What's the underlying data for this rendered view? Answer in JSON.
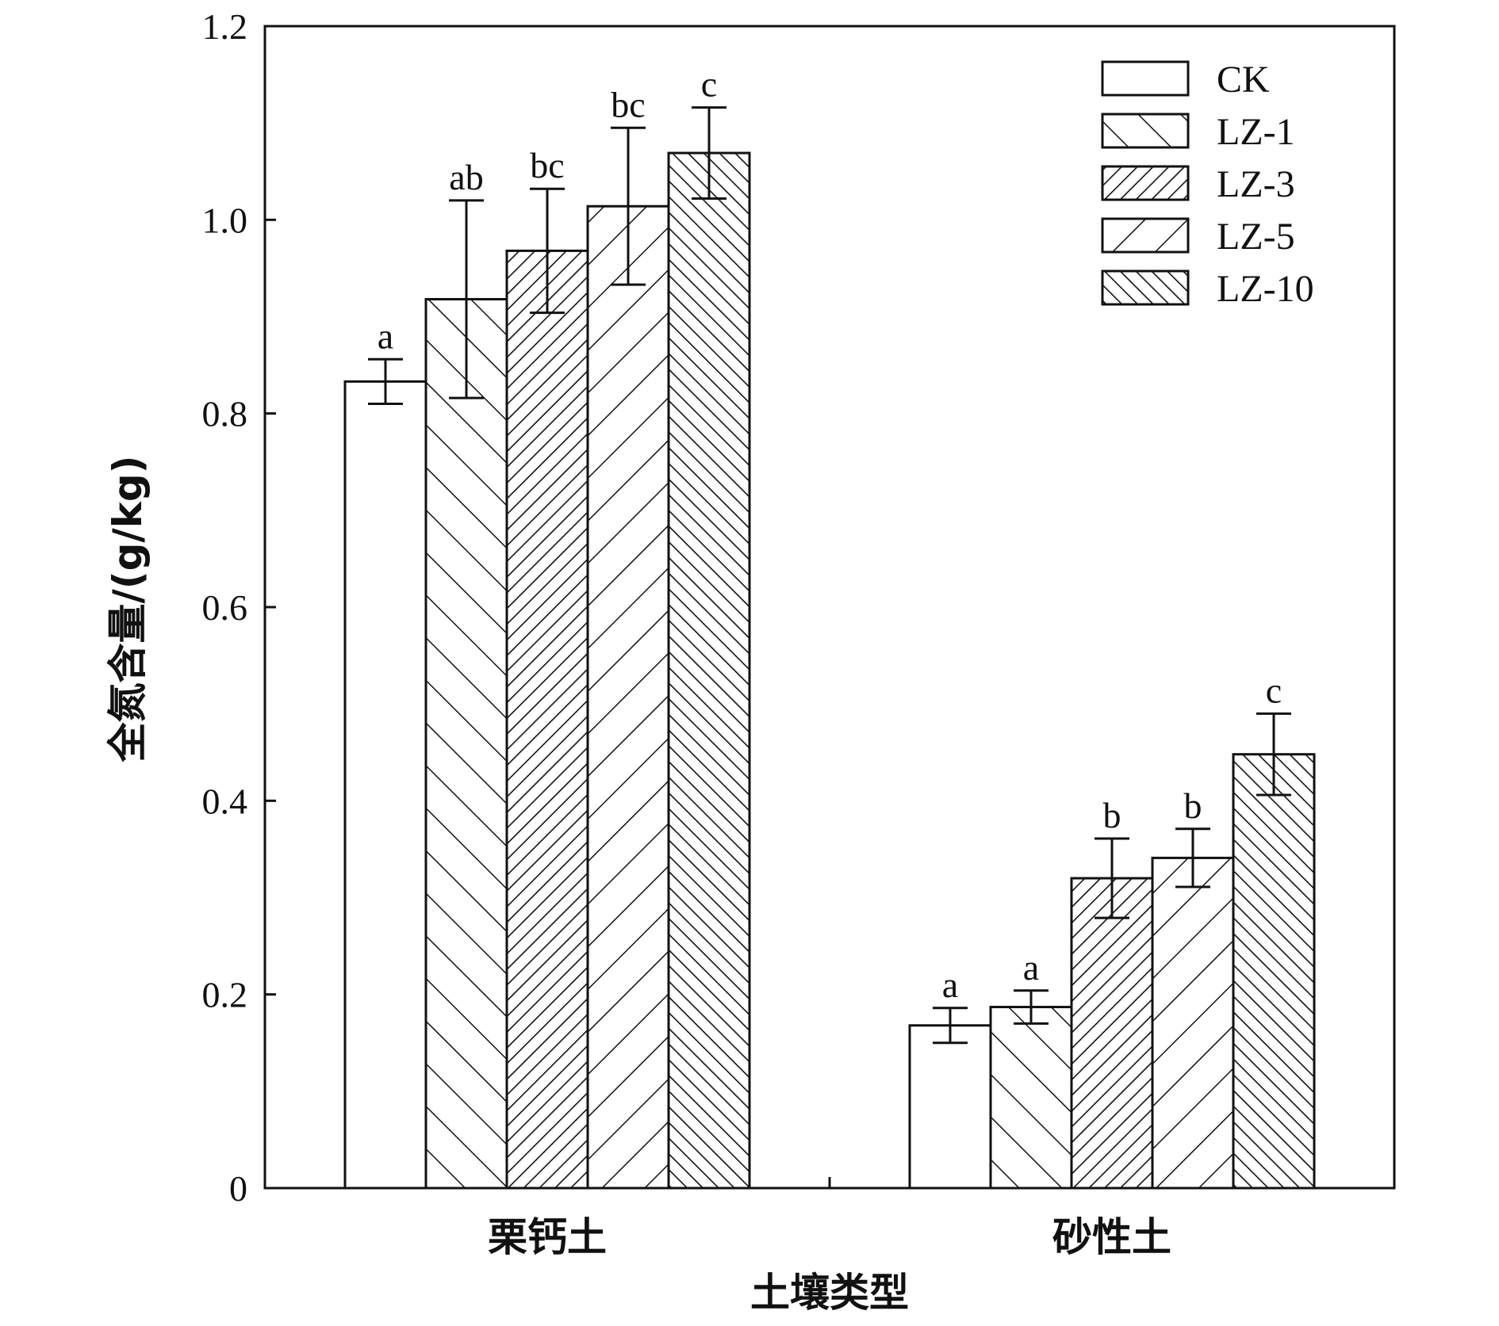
{
  "chart_data": {
    "type": "bar",
    "xlabel": "土壤类型",
    "ylabel": "全氮含量/(g/kg)",
    "ylim": [
      0,
      1.2
    ],
    "yticks": [
      "0",
      "0.2",
      "0.4",
      "0.6",
      "0.8",
      "1.0",
      "1.2"
    ],
    "categories": [
      "栗钙土",
      "砂性土"
    ],
    "legend_position": "top-right",
    "series": [
      {
        "name": "CK",
        "pattern": "none",
        "values": [
          0.833,
          0.168
        ],
        "errors": [
          0.023,
          0.018
        ],
        "labels": [
          "a",
          "a"
        ]
      },
      {
        "name": "LZ-1",
        "pattern": "backslash",
        "values": [
          0.918,
          0.187
        ],
        "errors": [
          0.102,
          0.017
        ],
        "labels": [
          "ab",
          "a"
        ]
      },
      {
        "name": "LZ-3",
        "pattern": "slash-dense",
        "values": [
          0.968,
          0.32
        ],
        "errors": [
          0.064,
          0.041
        ],
        "labels": [
          "bc",
          "b"
        ]
      },
      {
        "name": "LZ-5",
        "pattern": "slash-sparse",
        "values": [
          1.014,
          0.341
        ],
        "errors": [
          0.081,
          0.03
        ],
        "labels": [
          "bc",
          "b"
        ]
      },
      {
        "name": "LZ-10",
        "pattern": "backslash-dense",
        "values": [
          1.069,
          0.448
        ],
        "errors": [
          0.047,
          0.042
        ],
        "labels": [
          "c",
          "c"
        ]
      }
    ]
  }
}
